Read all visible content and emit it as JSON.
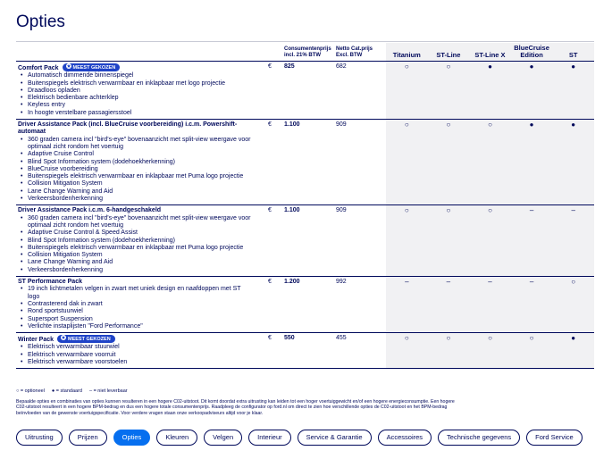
{
  "header": {
    "title": "Opties"
  },
  "table": {
    "columns": [
      "Consumentenprijs incl. 21% BTW",
      "Netto Cat.prijs Excl. BTW",
      "Titanium",
      "ST-Line",
      "ST-Line X",
      "BlueCruise Edition",
      "ST"
    ],
    "rows": [
      {
        "name": "Comfort Pack",
        "badge": "MEEST GEKOZEN",
        "items": [
          "Automatisch dimmende binnenspiegel",
          "Buitenspiegels elektrisch verwarmbaar en inklapbaar met logo projectie",
          "Draadloos opladen",
          "Elektrisch bedienbare achterklep",
          "Keyless entry",
          "In hoogte verstelbare passagiersstoel"
        ],
        "currency": "€",
        "price": "825",
        "net": "682",
        "availability": [
          "○",
          "○",
          "●",
          "●",
          "●"
        ]
      },
      {
        "name": "Driver Assistance Pack (incl. BlueCruise voorbereiding) i.c.m. Powershift-automaat",
        "items": [
          "360 graden camera incl \"bird's-eye\" bovenaanzicht met split-view weergave voor optimaal zicht rondom het voertuig",
          "Adaptive Cruise Control",
          "Blind Spot Information system (dodehoekherkenning)",
          "BlueCruise voorbereiding",
          "Buitenspiegels elektrisch verwarmbaar en inklapbaar met Puma logo projectie",
          "Collision Mitigation System",
          "Lane Change Warning and Aid",
          "Verkeersbordenherkenning"
        ],
        "currency": "€",
        "price": "1.100",
        "net": "909",
        "availability": [
          "○",
          "○",
          "○",
          "●",
          "●"
        ]
      },
      {
        "name": "Driver Assistance Pack i.c.m. 6-handgeschakeld",
        "items": [
          "360 graden camera incl \"bird's-eye\" bovenaanzicht met split-view weergave voor optimaal zicht rondom het voertuig",
          "Adaptive Cruise Control & Speed Assist",
          "Blind Spot Information system (dodehoekherkenning)",
          "Buitenspiegels elektrisch verwarmbaar en inklapbaar met Puma logo projectie",
          "Collision Mitigation System",
          "Lane Change Warning and Aid",
          "Verkeersbordenherkenning"
        ],
        "currency": "€",
        "price": "1.100",
        "net": "909",
        "availability": [
          "○",
          "○",
          "○",
          "–",
          "–"
        ]
      },
      {
        "name": "ST Performance Pack",
        "items": [
          "19 inch lichtmetalen velgen in zwart met uniek design en naafdoppen met ST logo",
          "Contrasterend dak in zwart",
          "Rond sportstuurwiel",
          "Supersport Suspension",
          "Verlichte instaplijsten \"Ford Performance\""
        ],
        "currency": "€",
        "price": "1.200",
        "net": "992",
        "availability": [
          "–",
          "–",
          "–",
          "–",
          "○"
        ]
      },
      {
        "name": "Winter Pack",
        "badge": "MEEST GEKOZEN",
        "items": [
          "Elektrisch verwarmbaar stuurwiel",
          "Elektrisch verwarmbare voorruit",
          "Elektrisch verwarmbare voorstoelen"
        ],
        "currency": "€",
        "price": "550",
        "net": "455",
        "availability": [
          "○",
          "○",
          "○",
          "○",
          "●"
        ]
      }
    ]
  },
  "legend": [
    "○ = optioneel",
    "● = standaard",
    "– = niet leverbaar"
  ],
  "footnote": "Bepaalde opties en combinaties van opties kunnen resulteren in een hogere C02-uitstoot. Dit komt doordat extra uitrusting kan leiden tot een hoger voertuiggewicht en/of een hogere energieconsumptie. Een hogere C02-uitstoot resulteert in een hogere BPM-bedrag en dus een hogere totale consumentenprijs. Raadpleeg de configurator op ford.nl om direct te zien hoe verschillende opties de C02-uitstoot en het BPM-bedrag beïnvloeden van de gewenste voertuigspecificatie. Voor verdere vragen staan onze verkoopadviseurs altijd voor je klaar.",
  "nav": {
    "items": [
      "Uitrusting",
      "Prijzen",
      "Opties",
      "Kleuren",
      "Velgen",
      "Interieur",
      "Service & Garantie",
      "Accessoires",
      "Technische gegevens",
      "Ford Service"
    ],
    "active": 2
  }
}
